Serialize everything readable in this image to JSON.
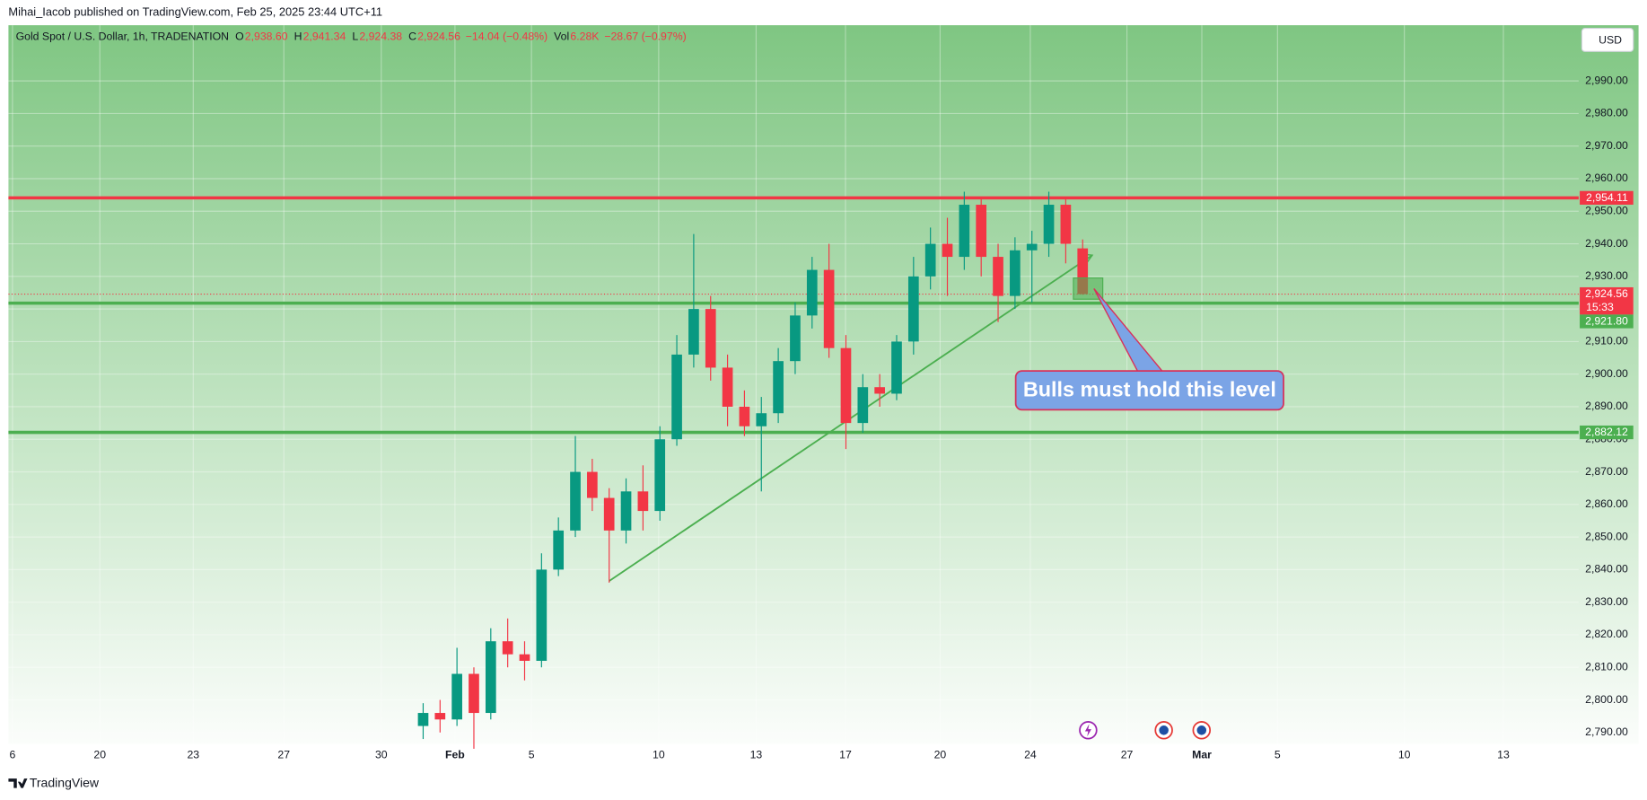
{
  "header": {
    "publisher": "Mihai_Iacob published on TradingView.com, Feb 25, 2025 23:44 UTC+11",
    "currency": "USD",
    "brand": "TradingView"
  },
  "chart_data": {
    "type": "candlestick",
    "title": "Gold Spot / U.S. Dollar, 1h, TRADENATION",
    "ohlc": [
      {
        "label": "O",
        "value": "2,938.60"
      },
      {
        "label": "H",
        "value": "2,941.34"
      },
      {
        "label": "L",
        "value": "2,924.38"
      },
      {
        "label": "C",
        "value": "2,924.56"
      }
    ],
    "change": "−14.04 (−0.48%)",
    "volume": {
      "label": "Vol",
      "value": "6.28K",
      "change": "−28.67 (−0.97%)"
    },
    "x": [
      10.3,
      10.72,
      11.14,
      11.56,
      11.98,
      12.4,
      12.82,
      13.24,
      13.66,
      14.08,
      14.5,
      14.92,
      15.34,
      15.76,
      16.18,
      16.6,
      17.02,
      17.44,
      17.86,
      18.28,
      18.7,
      19.12,
      19.54,
      19.96,
      20.38,
      20.8,
      21.22,
      21.64,
      22.06,
      22.48,
      22.9,
      23.32,
      23.74,
      24.16,
      24.58,
      25.0,
      25.42,
      25.84,
      26.26,
      26.68
    ],
    "open": [
      2792,
      2796,
      2794,
      2808,
      2796,
      2818,
      2814,
      2812,
      2840,
      2852,
      2870,
      2862,
      2852,
      2864,
      2858,
      2880,
      2906,
      2920,
      2902,
      2890,
      2884,
      2888,
      2904,
      2918,
      2932,
      2908,
      2885,
      2896,
      2894,
      2910,
      2930,
      2940,
      2936,
      2952,
      2936,
      2924,
      2938,
      2940,
      2952,
      2938.6
    ],
    "high": [
      2799,
      2800,
      2816,
      2810,
      2822,
      2825,
      2818,
      2845,
      2856,
      2881,
      2874,
      2865,
      2868,
      2872,
      2884,
      2912,
      2943,
      2924,
      2906,
      2895,
      2893,
      2908,
      2922,
      2936,
      2940,
      2912,
      2900,
      2900,
      2912,
      2936,
      2945,
      2948,
      2956,
      2954,
      2940,
      2942,
      2944,
      2956,
      2954,
      2941.34
    ],
    "low": [
      2788,
      2790,
      2792,
      2785,
      2794,
      2810,
      2806,
      2810,
      2838,
      2850,
      2858,
      2836,
      2848,
      2852,
      2855,
      2878,
      2902,
      2898,
      2884,
      2881,
      2864,
      2885,
      2900,
      2914,
      2905,
      2877,
      2882,
      2890,
      2892,
      2906,
      2926,
      2924,
      2932,
      2930,
      2916,
      2920,
      2922,
      2936,
      2934,
      2924.38
    ],
    "close": [
      2796,
      2794,
      2808,
      2796,
      2818,
      2814,
      2812,
      2840,
      2852,
      2870,
      2862,
      2852,
      2864,
      2858,
      2880,
      2906,
      2920,
      2902,
      2890,
      2884,
      2888,
      2904,
      2918,
      2932,
      2908,
      2885,
      2896,
      2894,
      2910,
      2930,
      2940,
      2936,
      2952,
      2936,
      2924,
      2938,
      2940,
      2952,
      2940,
      2924.56
    ],
    "up_color": "#089981",
    "down_color": "#f23645",
    "xlim": [
      0,
      39
    ],
    "xticks": [
      {
        "value": 0.1,
        "label": "6"
      },
      {
        "value": 2.27,
        "label": "20"
      },
      {
        "value": 4.59,
        "label": "23"
      },
      {
        "value": 6.84,
        "label": "27"
      },
      {
        "value": 9.26,
        "label": "30"
      },
      {
        "value": 11.09,
        "label": "Feb"
      },
      {
        "value": 12.99,
        "label": "5"
      },
      {
        "value": 16.15,
        "label": "10"
      },
      {
        "value": 18.57,
        "label": "13"
      },
      {
        "value": 20.79,
        "label": "17"
      },
      {
        "value": 23.14,
        "label": "20"
      },
      {
        "value": 25.38,
        "label": "24"
      },
      {
        "value": 27.78,
        "label": "27"
      },
      {
        "value": 29.64,
        "label": "Mar"
      },
      {
        "value": 31.52,
        "label": "5"
      },
      {
        "value": 34.67,
        "label": "10"
      },
      {
        "value": 37.13,
        "label": "13"
      }
    ],
    "ylim": [
      2786.5,
      3007.1
    ],
    "yticks": [
      {
        "value": 2790,
        "label": "2,790.00"
      },
      {
        "value": 2800,
        "label": "2,800.00"
      },
      {
        "value": 2810,
        "label": "2,810.00"
      },
      {
        "value": 2820,
        "label": "2,820.00"
      },
      {
        "value": 2830,
        "label": "2,830.00"
      },
      {
        "value": 2840,
        "label": "2,840.00"
      },
      {
        "value": 2850,
        "label": "2,850.00"
      },
      {
        "value": 2860,
        "label": "2,860.00"
      },
      {
        "value": 2870,
        "label": "2,870.00"
      },
      {
        "value": 2880,
        "label": "2,880.00"
      },
      {
        "value": 2890,
        "label": "2,890.00"
      },
      {
        "value": 2900,
        "label": "2,900.00"
      },
      {
        "value": 2910,
        "label": "2,910.00"
      },
      {
        "value": 2920,
        "label": "2,920.00"
      },
      {
        "value": 2930,
        "label": "2,930.00"
      },
      {
        "value": 2940,
        "label": "2,940.00"
      },
      {
        "value": 2950,
        "label": "2,950.00"
      },
      {
        "value": 2960,
        "label": "2,960.00"
      },
      {
        "value": 2970,
        "label": "2,970.00"
      },
      {
        "value": 2980,
        "label": "2,980.00"
      },
      {
        "value": 2990,
        "label": "2,990.00"
      }
    ],
    "grid": true,
    "levels": [
      {
        "value": 2954.11,
        "label": "2,954.11",
        "color": "#f23645"
      },
      {
        "value": 2921.8,
        "label": "2,921.80",
        "color": "#4caf50"
      },
      {
        "value": 2882.12,
        "label": "2,882.12",
        "color": "#4caf50"
      }
    ],
    "last_price": {
      "value": 2924.56,
      "label": "2,924.56",
      "countdown": "15:33",
      "color": "#f23645"
    },
    "trendline": {
      "x": [
        14.92,
        26.92
      ],
      "y": [
        2836.5,
        2936.5
      ],
      "color": "#4caf50"
    },
    "zone": {
      "x": [
        26.45,
        27.18
      ],
      "y": [
        2923,
        2929.5
      ]
    },
    "annotation": {
      "text": "Bulls must hold this level"
    }
  }
}
